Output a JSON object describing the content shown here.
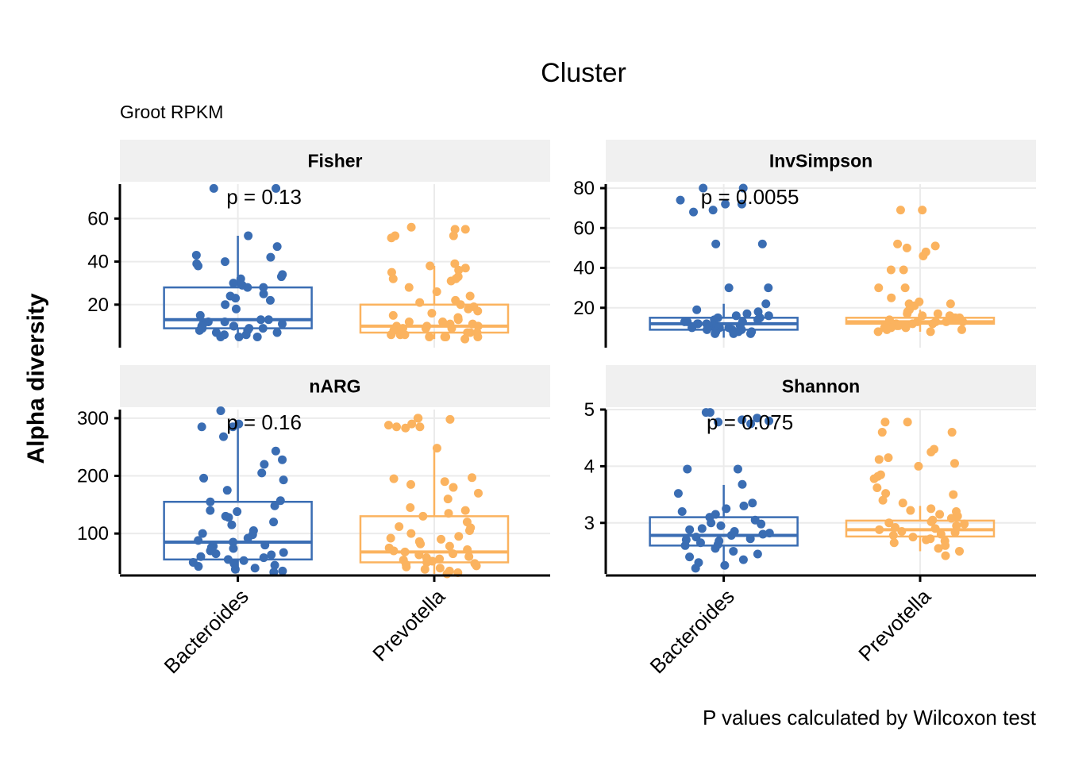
{
  "legend_title": "Cluster",
  "subtitle": "Groot RPKM",
  "caption": "P values calculated by Wilcoxon test",
  "colors": {
    "Bacteroides": "#3a6db3",
    "Prevotella": "#fbb35f"
  },
  "chart_data": {
    "type": "box",
    "ylabel": "Alpha diversity",
    "categories": [
      "Bacteroides",
      "Prevotella"
    ],
    "panels": [
      {
        "name": "Fisher",
        "p_label": "p = 0.13",
        "ylim": [
          0,
          76
        ],
        "yticks": [
          20,
          40,
          60
        ],
        "boxes": [
          {
            "group": "Bacteroides",
            "q1": 9,
            "median": 13,
            "q3": 28,
            "whisker_low": 4,
            "whisker_high": 52
          },
          {
            "group": "Prevotella",
            "q1": 7,
            "median": 10,
            "q3": 20,
            "whisker_low": 4,
            "whisker_high": 38
          }
        ],
        "points": [
          {
            "group": "Bacteroides",
            "values": [
              74,
              74,
              52,
              47,
              43,
              42,
              40,
              39,
              38,
              34,
              33,
              32,
              30,
              29,
              28,
              28,
              25,
              24,
              23,
              22,
              20,
              18,
              15,
              13,
              13,
              12,
              12,
              11,
              11,
              10,
              10,
              10,
              9,
              9,
              9,
              8,
              8,
              7,
              7,
              6,
              6,
              5,
              5,
              5
            ]
          },
          {
            "group": "Prevotella",
            "values": [
              56,
              55,
              55,
              52,
              52,
              51,
              39,
              38,
              37,
              36,
              35,
              33,
              32,
              32,
              31,
              28,
              26,
              24,
              22,
              21,
              20,
              19,
              18,
              17,
              16,
              15,
              14,
              13,
              12,
              12,
              11,
              11,
              10,
              10,
              10,
              9,
              9,
              9,
              8,
              8,
              8,
              7,
              7,
              7,
              6,
              6,
              6,
              5,
              5,
              5,
              5,
              4
            ]
          }
        ]
      },
      {
        "name": "InvSimpson",
        "p_label": "p = 0.0055",
        "ylim": [
          0,
          82
        ],
        "yticks": [
          20,
          40,
          60,
          80
        ],
        "boxes": [
          {
            "group": "Bacteroides",
            "q1": 9,
            "median": 12,
            "q3": 15,
            "whisker_low": 5,
            "whisker_high": 22
          },
          {
            "group": "Prevotella",
            "q1": 12,
            "median": 13,
            "q3": 15,
            "whisker_low": 8,
            "whisker_high": 19
          }
        ],
        "points": [
          {
            "group": "Bacteroides",
            "values": [
              80,
              80,
              74,
              72,
              72,
              69,
              68,
              52,
              52,
              30,
              30,
              22,
              19,
              18,
              17,
              16,
              16,
              15,
              15,
              14,
              14,
              13,
              13,
              13,
              12,
              12,
              12,
              11,
              11,
              11,
              10,
              10,
              10,
              10,
              9,
              9,
              9,
              8,
              8,
              8,
              7,
              7,
              7
            ]
          },
          {
            "group": "Prevotella",
            "values": [
              69,
              69,
              52,
              51,
              50,
              48,
              46,
              39,
              39,
              30,
              30,
              25,
              23,
              22,
              22,
              21,
              19,
              18,
              17,
              17,
              16,
              16,
              15,
              15,
              15,
              14,
              14,
              14,
              13,
              13,
              13,
              13,
              12,
              12,
              12,
              12,
              11,
              11,
              11,
              10,
              10,
              10,
              9,
              9,
              8,
              8
            ]
          }
        ]
      },
      {
        "name": "nARG",
        "p_label": "p = 0.16",
        "ylim": [
          30,
          315
        ],
        "yticks": [
          100,
          200,
          300
        ],
        "boxes": [
          {
            "group": "Bacteroides",
            "q1": 55,
            "median": 85,
            "q3": 155,
            "whisker_low": 32,
            "whisker_high": 290
          },
          {
            "group": "Prevotella",
            "q1": 50,
            "median": 68,
            "q3": 130,
            "whisker_low": 30,
            "whisker_high": 245
          }
        ],
        "points": [
          {
            "group": "Bacteroides",
            "values": [
              313,
              290,
              285,
              285,
              268,
              243,
              228,
              220,
              205,
              196,
              193,
              175,
              157,
              155,
              148,
              140,
              138,
              130,
              128,
              120,
              115,
              105,
              100,
              98,
              92,
              88,
              85,
              80,
              78,
              76,
              74,
              70,
              67,
              65,
              63,
              60,
              58,
              55,
              53,
              50,
              48,
              45,
              43,
              40,
              38,
              35,
              33
            ]
          },
          {
            "group": "Prevotella",
            "values": [
              300,
              300,
              298,
              290,
              288,
              285,
              285,
              283,
              248,
              197,
              195,
              190,
              185,
              180,
              170,
              160,
              145,
              140,
              135,
              130,
              120,
              112,
              110,
              105,
              100,
              95,
              92,
              90,
              86,
              82,
              78,
              75,
              72,
              70,
              68,
              65,
              63,
              60,
              58,
              56,
              54,
              52,
              50,
              48,
              46,
              44,
              42,
              40,
              38,
              35,
              32,
              30
            ]
          }
        ]
      },
      {
        "name": "Shannon",
        "p_label": "p = 0.075",
        "ylim": [
          2.1,
          5.0
        ],
        "yticks": [
          3,
          4,
          5
        ],
        "boxes": [
          {
            "group": "Bacteroides",
            "q1": 2.6,
            "median": 2.78,
            "q3": 3.1,
            "whisker_low": 2.2,
            "whisker_high": 3.67
          },
          {
            "group": "Prevotella",
            "q1": 2.76,
            "median": 2.88,
            "q3": 3.04,
            "whisker_low": 2.5,
            "whisker_high": 3.3
          }
        ],
        "points": [
          {
            "group": "Bacteroides",
            "values": [
              4.95,
              4.95,
              4.85,
              4.82,
              4.8,
              4.78,
              4.75,
              3.95,
              3.95,
              3.68,
              3.52,
              3.35,
              3.3,
              3.25,
              3.2,
              3.15,
              3.1,
              3.05,
              3.0,
              2.98,
              2.95,
              2.9,
              2.88,
              2.85,
              2.82,
              2.8,
              2.78,
              2.75,
              2.72,
              2.7,
              2.68,
              2.65,
              2.62,
              2.6,
              2.55,
              2.5,
              2.45,
              2.4,
              2.35,
              2.3,
              2.25,
              2.2
            ]
          },
          {
            "group": "Prevotella",
            "values": [
              4.78,
              4.78,
              4.6,
              4.6,
              4.3,
              4.25,
              4.15,
              4.12,
              4.05,
              4.0,
              3.85,
              3.82,
              3.78,
              3.62,
              3.52,
              3.5,
              3.4,
              3.35,
              3.25,
              3.22,
              3.2,
              3.15,
              3.12,
              3.08,
              3.05,
              3.02,
              3.0,
              2.98,
              2.95,
              2.92,
              2.9,
              2.88,
              2.85,
              2.83,
              2.8,
              2.78,
              2.75,
              2.72,
              2.7,
              2.68,
              2.65,
              2.6,
              2.55,
              2.5,
              2.42
            ]
          }
        ]
      }
    ]
  }
}
